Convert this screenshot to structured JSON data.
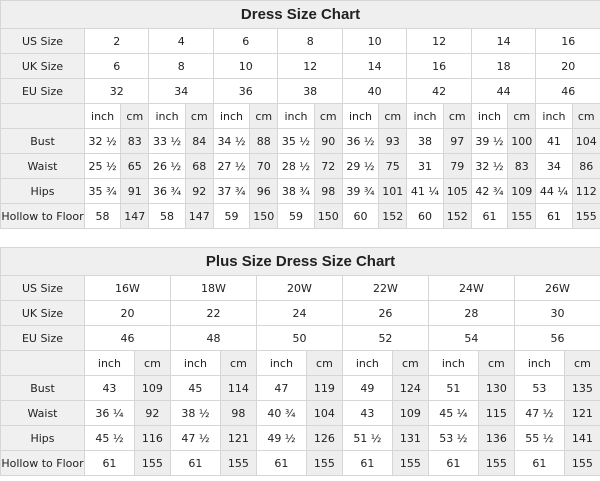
{
  "charts": [
    {
      "title": "Dress Size Chart",
      "size_rows": [
        {
          "label": "US Size",
          "values": [
            "2",
            "4",
            "6",
            "8",
            "10",
            "12",
            "14",
            "16"
          ]
        },
        {
          "label": "UK Size",
          "values": [
            "6",
            "8",
            "10",
            "12",
            "14",
            "16",
            "18",
            "20"
          ]
        },
        {
          "label": "EU Size",
          "values": [
            "32",
            "34",
            "36",
            "38",
            "40",
            "42",
            "44",
            "46"
          ]
        }
      ],
      "unit_inch": "inch",
      "unit_cm": "cm",
      "measure_rows": [
        {
          "label": "Bust",
          "values": [
            [
              "32 ½",
              "83"
            ],
            [
              "33 ½",
              "84"
            ],
            [
              "34 ½",
              "88"
            ],
            [
              "35 ½",
              "90"
            ],
            [
              "36 ½",
              "93"
            ],
            [
              "38",
              "97"
            ],
            [
              "39 ½",
              "100"
            ],
            [
              "41",
              "104"
            ]
          ]
        },
        {
          "label": "Waist",
          "values": [
            [
              "25 ½",
              "65"
            ],
            [
              "26 ½",
              "68"
            ],
            [
              "27 ½",
              "70"
            ],
            [
              "28 ½",
              "72"
            ],
            [
              "29 ½",
              "75"
            ],
            [
              "31",
              "79"
            ],
            [
              "32 ½",
              "83"
            ],
            [
              "34",
              "86"
            ]
          ]
        },
        {
          "label": "Hips",
          "values": [
            [
              "35 ¾",
              "91"
            ],
            [
              "36 ¾",
              "92"
            ],
            [
              "37 ¾",
              "96"
            ],
            [
              "38 ¾",
              "98"
            ],
            [
              "39 ¾",
              "101"
            ],
            [
              "41 ¼",
              "105"
            ],
            [
              "42 ¾",
              "109"
            ],
            [
              "44 ¼",
              "112"
            ]
          ]
        },
        {
          "label": "Hollow to Floor",
          "values": [
            [
              "58",
              "147"
            ],
            [
              "58",
              "147"
            ],
            [
              "59",
              "150"
            ],
            [
              "59",
              "150"
            ],
            [
              "60",
              "152"
            ],
            [
              "60",
              "152"
            ],
            [
              "61",
              "155"
            ],
            [
              "61",
              "155"
            ]
          ]
        }
      ]
    },
    {
      "title": "Plus Size Dress Size Chart",
      "size_rows": [
        {
          "label": "US Size",
          "values": [
            "16W",
            "18W",
            "20W",
            "22W",
            "24W",
            "26W"
          ]
        },
        {
          "label": "UK Size",
          "values": [
            "20",
            "22",
            "24",
            "26",
            "28",
            "30"
          ]
        },
        {
          "label": "EU Size",
          "values": [
            "46",
            "48",
            "50",
            "52",
            "54",
            "56"
          ]
        }
      ],
      "unit_inch": "inch",
      "unit_cm": "cm",
      "measure_rows": [
        {
          "label": "Bust",
          "values": [
            [
              "43",
              "109"
            ],
            [
              "45",
              "114"
            ],
            [
              "47",
              "119"
            ],
            [
              "49",
              "124"
            ],
            [
              "51",
              "130"
            ],
            [
              "53",
              "135"
            ]
          ]
        },
        {
          "label": "Waist",
          "values": [
            [
              "36 ¼",
              "92"
            ],
            [
              "38 ½",
              "98"
            ],
            [
              "40 ¾",
              "104"
            ],
            [
              "43",
              "109"
            ],
            [
              "45 ¼",
              "115"
            ],
            [
              "47 ½",
              "121"
            ]
          ]
        },
        {
          "label": "Hips",
          "values": [
            [
              "45 ½",
              "116"
            ],
            [
              "47 ½",
              "121"
            ],
            [
              "49 ½",
              "126"
            ],
            [
              "51 ½",
              "131"
            ],
            [
              "53 ½",
              "136"
            ],
            [
              "55 ½",
              "141"
            ]
          ]
        },
        {
          "label": "Hollow to Floor",
          "values": [
            [
              "61",
              "155"
            ],
            [
              "61",
              "155"
            ],
            [
              "61",
              "155"
            ],
            [
              "61",
              "155"
            ],
            [
              "61",
              "155"
            ],
            [
              "61",
              "155"
            ]
          ]
        }
      ]
    }
  ]
}
